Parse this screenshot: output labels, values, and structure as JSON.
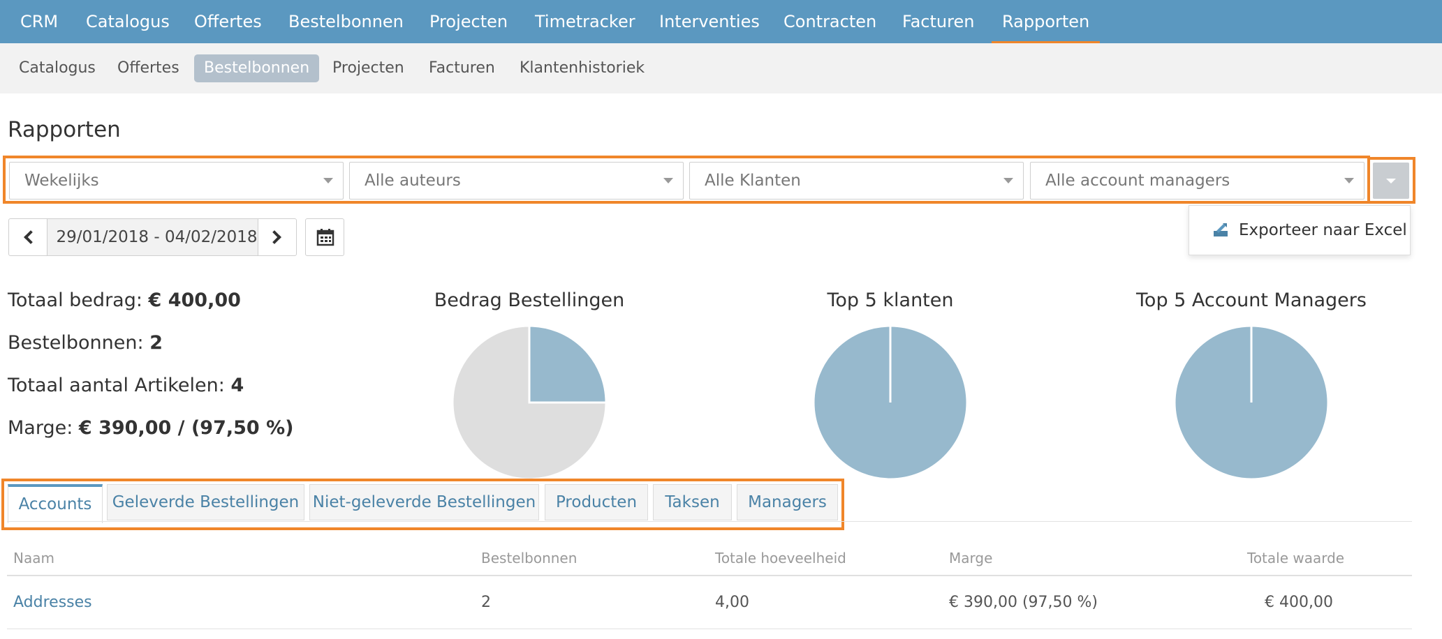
{
  "top_nav": {
    "items": [
      "CRM",
      "Catalogus",
      "Offertes",
      "Bestelbonnen",
      "Projecten",
      "Timetracker",
      "Interventies",
      "Contracten",
      "Facturen",
      "Rapporten"
    ],
    "active": "Rapporten"
  },
  "sub_nav": {
    "items": [
      "Catalogus",
      "Offertes",
      "Bestelbonnen",
      "Projecten",
      "Facturen",
      "Klantenhistoriek"
    ],
    "active": "Bestelbonnen"
  },
  "page_title": "Rapporten",
  "filters": {
    "period": "Wekelijks",
    "authors": "Alle auteurs",
    "clients": "Alle Klanten",
    "account_managers": "Alle account managers"
  },
  "export_menu": {
    "export_excel_label": "Exporteer naar Excel",
    "icon": "excel-export-icon"
  },
  "date_range": {
    "value": "29/01/2018 - 04/02/2018",
    "prev_icon": "chevron-left-icon",
    "next_icon": "chevron-right-icon",
    "calendar_icon": "calendar-icon"
  },
  "stats": {
    "total_amount_label": "Totaal bedrag: ",
    "total_amount_value": "€ 400,00",
    "orders_label": "Bestelbonnen: ",
    "orders_value": "2",
    "articles_label": "Totaal aantal Artikelen: ",
    "articles_value": "4",
    "margin_label": "Marge: ",
    "margin_value": "€ 390,00 / (97,50 %)"
  },
  "chart_data": [
    {
      "type": "pie",
      "title": "Bedrag Bestellingen",
      "values": [
        25,
        75
      ],
      "colors": [
        "#97b9cd",
        "#dedede"
      ]
    },
    {
      "type": "pie",
      "title": "Top 5 klanten",
      "values": [
        100
      ],
      "colors": [
        "#97b9cd"
      ]
    },
    {
      "type": "pie",
      "title": "Top 5 Account Managers",
      "values": [
        100
      ],
      "colors": [
        "#97b9cd"
      ]
    }
  ],
  "tabs": [
    "Accounts",
    "Geleverde Bestellingen",
    "Niet-geleverde Bestellingen",
    "Producten",
    "Taksen",
    "Managers"
  ],
  "active_tab": "Accounts",
  "table": {
    "columns": [
      "Naam",
      "Bestelbonnen",
      "Totale hoeveelheid",
      "Marge",
      "Totale waarde"
    ],
    "rows": [
      [
        "Addresses",
        "2",
        "4,00",
        "€ 390,00 (97,50 %)",
        "€ 400,00"
      ]
    ]
  },
  "colors": {
    "nav": "#5b98c0",
    "accent": "#f0862a",
    "link": "#4a82a6",
    "pie": "#97b9cd"
  }
}
